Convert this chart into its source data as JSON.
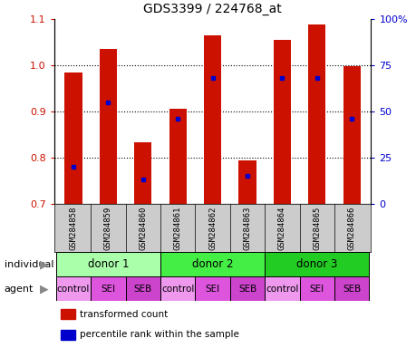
{
  "title": "GDS3399 / 224768_at",
  "samples": [
    "GSM284858",
    "GSM284859",
    "GSM284860",
    "GSM284861",
    "GSM284862",
    "GSM284863",
    "GSM284864",
    "GSM284865",
    "GSM284866"
  ],
  "transformed_count": [
    0.985,
    1.035,
    0.833,
    0.905,
    1.065,
    0.793,
    1.055,
    1.088,
    0.998
  ],
  "percentile_rank_pct": [
    20,
    55,
    13,
    46,
    68,
    15,
    68,
    68,
    46
  ],
  "bar_color": "#cc1100",
  "dot_color": "#0000cc",
  "ylim": [
    0.7,
    1.1
  ],
  "y2lim": [
    0,
    100
  ],
  "yticks": [
    0.7,
    0.8,
    0.9,
    1.0,
    1.1
  ],
  "y2ticks": [
    0,
    25,
    50,
    75,
    100
  ],
  "y2labels": [
    "0",
    "25",
    "50",
    "75",
    "100%"
  ],
  "grid_lines": [
    0.8,
    0.9,
    1.0
  ],
  "individuals": [
    {
      "label": "donor 1",
      "span": [
        0,
        3
      ],
      "color": "#aaffaa"
    },
    {
      "label": "donor 2",
      "span": [
        3,
        6
      ],
      "color": "#44ee44"
    },
    {
      "label": "donor 3",
      "span": [
        6,
        9
      ],
      "color": "#22cc22"
    }
  ],
  "agents": [
    "control",
    "SEI",
    "SEB",
    "control",
    "SEI",
    "SEB",
    "control",
    "SEI",
    "SEB"
  ],
  "agent_colors": [
    "#ee99ee",
    "#dd55dd",
    "#cc44cc",
    "#ee99ee",
    "#dd55dd",
    "#cc44cc",
    "#ee99ee",
    "#dd55dd",
    "#cc44cc"
  ],
  "tick_label_color": "#cc1100",
  "y2_tick_color": "#0000cc",
  "sample_bg_color": "#cccccc",
  "legend_items": [
    "transformed count",
    "percentile rank within the sample"
  ],
  "legend_colors": [
    "#cc1100",
    "#0000cc"
  ]
}
